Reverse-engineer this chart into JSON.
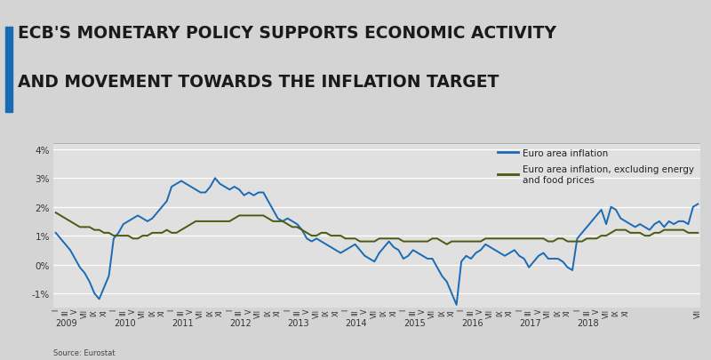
{
  "title_line1": "ECB'S MONETARY POLICY SUPPORTS ECONOMIC ACTIVITY",
  "title_line2": "AND MOVEMENT TOWARDS THE INFLATION TARGET",
  "source_text": "Source: Eurostat",
  "background_color": "#d4d4d4",
  "plot_bg_color": "#e0e0e0",
  "title_color": "#1a1a1a",
  "line1_color": "#1a6ab5",
  "line2_color": "#4a5a10",
  "legend_labels": [
    "Euro area inflation",
    "Euro area inflation, excluding energy\nand food prices"
  ],
  "ylim": [
    -1.5,
    4.2
  ],
  "yticks": [
    -1,
    0,
    1,
    2,
    3,
    4
  ],
  "ytick_labels": [
    "-1%",
    "0%",
    "1%",
    "2%",
    "3%",
    "4%"
  ],
  "euro_inflation": [
    1.1,
    0.9,
    0.7,
    0.5,
    0.2,
    -0.1,
    -0.3,
    -0.6,
    -1.0,
    -1.2,
    -0.8,
    -0.4,
    0.9,
    1.1,
    1.4,
    1.5,
    1.6,
    1.7,
    1.6,
    1.5,
    1.6,
    1.8,
    2.0,
    2.2,
    2.7,
    2.8,
    2.9,
    2.8,
    2.7,
    2.6,
    2.5,
    2.5,
    2.7,
    3.0,
    2.8,
    2.7,
    2.6,
    2.7,
    2.6,
    2.4,
    2.5,
    2.4,
    2.5,
    2.5,
    2.2,
    1.9,
    1.6,
    1.5,
    1.6,
    1.5,
    1.4,
    1.2,
    0.9,
    0.8,
    0.9,
    0.8,
    0.7,
    0.6,
    0.5,
    0.4,
    0.5,
    0.6,
    0.7,
    0.5,
    0.3,
    0.2,
    0.1,
    0.4,
    0.6,
    0.8,
    0.6,
    0.5,
    0.2,
    0.3,
    0.5,
    0.4,
    0.3,
    0.2,
    0.2,
    -0.1,
    -0.4,
    -0.6,
    -1.0,
    -1.4,
    0.1,
    0.3,
    0.2,
    0.4,
    0.5,
    0.7,
    0.6,
    0.5,
    0.4,
    0.3,
    0.4,
    0.5,
    0.3,
    0.2,
    -0.1,
    0.1,
    0.3,
    0.4,
    0.2,
    0.2,
    0.2,
    0.1,
    -0.1,
    -0.2,
    0.9,
    1.1,
    1.3,
    1.5,
    1.7,
    1.9,
    1.4,
    2.0,
    1.9,
    1.6,
    1.5,
    1.4,
    1.3,
    1.4,
    1.3,
    1.2,
    1.4,
    1.5,
    1.3,
    1.5,
    1.4,
    1.5,
    1.5,
    1.4,
    2.0,
    2.1
  ],
  "euro_excl": [
    1.8,
    1.7,
    1.6,
    1.5,
    1.4,
    1.3,
    1.3,
    1.3,
    1.2,
    1.2,
    1.1,
    1.1,
    1.0,
    1.0,
    1.0,
    1.0,
    0.9,
    0.9,
    1.0,
    1.0,
    1.1,
    1.1,
    1.1,
    1.2,
    1.1,
    1.1,
    1.2,
    1.3,
    1.4,
    1.5,
    1.5,
    1.5,
    1.5,
    1.5,
    1.5,
    1.5,
    1.5,
    1.6,
    1.7,
    1.7,
    1.7,
    1.7,
    1.7,
    1.7,
    1.6,
    1.5,
    1.5,
    1.5,
    1.4,
    1.3,
    1.3,
    1.2,
    1.1,
    1.0,
    1.0,
    1.1,
    1.1,
    1.0,
    1.0,
    1.0,
    0.9,
    0.9,
    0.9,
    0.8,
    0.8,
    0.8,
    0.8,
    0.9,
    0.9,
    0.9,
    0.9,
    0.9,
    0.8,
    0.8,
    0.8,
    0.8,
    0.8,
    0.8,
    0.9,
    0.9,
    0.8,
    0.7,
    0.8,
    0.8,
    0.8,
    0.8,
    0.8,
    0.8,
    0.8,
    0.9,
    0.9,
    0.9,
    0.9,
    0.9,
    0.9,
    0.9,
    0.9,
    0.9,
    0.9,
    0.9,
    0.9,
    0.9,
    0.8,
    0.8,
    0.9,
    0.9,
    0.8,
    0.8,
    0.8,
    0.8,
    0.9,
    0.9,
    0.9,
    1.0,
    1.0,
    1.1,
    1.2,
    1.2,
    1.2,
    1.1,
    1.1,
    1.1,
    1.0,
    1.0,
    1.1,
    1.1,
    1.2,
    1.2,
    1.2,
    1.2,
    1.2,
    1.1,
    1.1,
    1.1
  ],
  "x_year_labels": [
    "2009",
    "2010",
    "2011",
    "2012",
    "2013",
    "2014",
    "2015",
    "2016",
    "2017",
    "2018"
  ],
  "roman_labels": [
    "I",
    "III",
    "V",
    "VII",
    "IX",
    "XI"
  ],
  "roman_offsets": [
    0,
    2,
    4,
    6,
    8,
    10
  ]
}
